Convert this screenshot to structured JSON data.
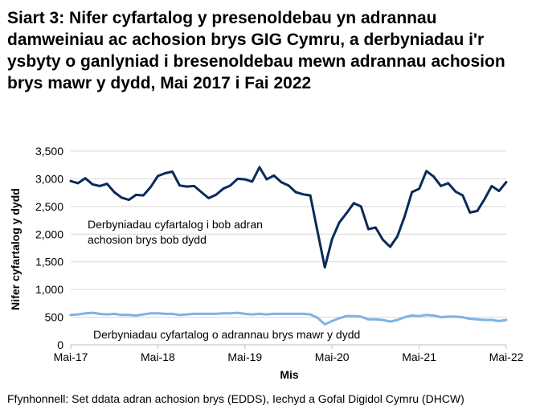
{
  "title": "Siart 3: Nifer cyfartalog y presenoldebau yn adrannau damweiniau ac achosion brys GIG Cymru, a derbyniadau i'r ysbyty o ganlyniad i bresenoldebau mewn adrannau achosion brys mawr y dydd, Mai 2017 i Fai 2022",
  "source": "Ffynhonnell: Set ddata adran achosion brys (EDDS), Iechyd a Gofal Digidol Cymru (DHCW)",
  "chart_data": {
    "type": "line",
    "title": "Siart 3: Nifer cyfartalog y presenoldebau yn adrannau damweiniau ac achosion brys GIG Cymru, a derbyniadau i'r ysbyty o ganlyniad i bresenoldebau mewn adrannau achosion brys mawr y dydd, Mai 2017 i Fai 2022",
    "xlabel": "Mis",
    "ylabel": "Nifer cyfartalog y dydd",
    "ylim": [
      0,
      3500
    ],
    "y_ticks": [
      0,
      500,
      1000,
      1500,
      2000,
      2500,
      3000,
      3500
    ],
    "y_tick_labels": [
      "0",
      "500",
      "1,000",
      "1,500",
      "2,000",
      "2,500",
      "3,000",
      "3,500"
    ],
    "x_tick_labels": [
      "Mai-17",
      "Mai-18",
      "Mai-19",
      "Mai-20",
      "Mai-21",
      "Mai-22"
    ],
    "x_tick_index": [
      0,
      12,
      24,
      36,
      48,
      60
    ],
    "grid": true,
    "legend": "none",
    "x": [
      "May-2017",
      "Jun-2017",
      "Jul-2017",
      "Aug-2017",
      "Sep-2017",
      "Oct-2017",
      "Nov-2017",
      "Dec-2017",
      "Jan-2018",
      "Feb-2018",
      "Mar-2018",
      "Apr-2018",
      "May-2018",
      "Jun-2018",
      "Jul-2018",
      "Aug-2018",
      "Sep-2018",
      "Oct-2018",
      "Nov-2018",
      "Dec-2018",
      "Jan-2019",
      "Feb-2019",
      "Mar-2019",
      "Apr-2019",
      "May-2019",
      "Jun-2019",
      "Jul-2019",
      "Aug-2019",
      "Sep-2019",
      "Oct-2019",
      "Nov-2019",
      "Dec-2019",
      "Jan-2020",
      "Feb-2020",
      "Mar-2020",
      "Apr-2020",
      "May-2020",
      "Jun-2020",
      "Jul-2020",
      "Aug-2020",
      "Sep-2020",
      "Oct-2020",
      "Nov-2020",
      "Dec-2020",
      "Jan-2021",
      "Feb-2021",
      "Mar-2021",
      "Apr-2021",
      "May-2021",
      "Jun-2021",
      "Jul-2021",
      "Aug-2021",
      "Sep-2021",
      "Oct-2021",
      "Nov-2021",
      "Dec-2021",
      "Jan-2022",
      "Feb-2022",
      "Mar-2022",
      "Apr-2022",
      "May-2022"
    ],
    "series": [
      {
        "name": "Derbyniadau cyfartalog i bob adran achosion brys bob dydd",
        "color": "#0b2a5b",
        "values": [
          2960,
          2920,
          3010,
          2900,
          2870,
          2910,
          2760,
          2660,
          2620,
          2710,
          2700,
          2850,
          3050,
          3100,
          3130,
          2880,
          2860,
          2870,
          2760,
          2650,
          2710,
          2820,
          2880,
          3000,
          2990,
          2950,
          3210,
          2990,
          3060,
          2940,
          2880,
          2760,
          2720,
          2700,
          2050,
          1400,
          1910,
          2210,
          2380,
          2560,
          2500,
          2090,
          2120,
          1900,
          1770,
          1960,
          2320,
          2760,
          2820,
          3140,
          3040,
          2870,
          2920,
          2770,
          2700,
          2390,
          2420,
          2630,
          2870,
          2780,
          2940
        ]
      },
      {
        "name": "Derbyniadau cyfartalog o adrannau brys mawr y dydd",
        "color": "#7fb2e5",
        "values": [
          540,
          550,
          570,
          580,
          560,
          550,
          560,
          540,
          540,
          530,
          550,
          570,
          570,
          560,
          560,
          540,
          550,
          560,
          560,
          560,
          560,
          570,
          570,
          580,
          560,
          550,
          560,
          550,
          560,
          560,
          560,
          560,
          560,
          550,
          490,
          370,
          430,
          480,
          520,
          520,
          510,
          460,
          460,
          450,
          420,
          450,
          500,
          530,
          520,
          540,
          530,
          500,
          510,
          510,
          500,
          470,
          460,
          450,
          450,
          430,
          450
        ]
      }
    ],
    "annotations": [
      {
        "lines": [
          "Derbyniadau cyfartalog i bob adran",
          "achosion brys bob dydd"
        ],
        "series": 0
      },
      {
        "lines": [
          "Derbyniadau cyfartalog o adrannau brys mawr y dydd"
        ],
        "series": 1
      }
    ]
  }
}
